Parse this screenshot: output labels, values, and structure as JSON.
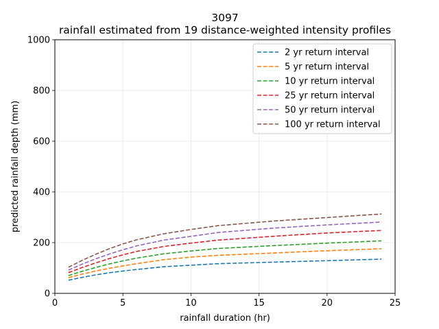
{
  "chart_data": {
    "type": "line",
    "title": "3097",
    "subtitle": "rainfall estimated from 19 distance-weighted intensity profiles",
    "xlabel": "rainfall duration (hr)",
    "ylabel": "predicted rainfall depth (mm)",
    "xlim": [
      0,
      25
    ],
    "ylim": [
      0,
      1000
    ],
    "xticks": [
      "0",
      "5",
      "10",
      "15",
      "20",
      "25"
    ],
    "yticks": [
      "0",
      "200",
      "400",
      "600",
      "800",
      "1000"
    ],
    "grid": true,
    "legend_position": "top-right",
    "line_style": "dashed",
    "x": [
      1,
      2,
      3,
      4,
      5,
      6,
      8,
      10,
      12,
      16,
      20,
      24
    ],
    "series": [
      {
        "name": "2 yr return interval",
        "color": "#1f77b4",
        "values": [
          52,
          63,
          73,
          81,
          88,
          94,
          105,
          111,
          117,
          123,
          129,
          135
        ]
      },
      {
        "name": "5 yr return interval",
        "color": "#ff7f0e",
        "values": [
          62,
          76,
          88,
          99,
          108,
          117,
          133,
          143,
          150,
          159,
          168,
          176
        ]
      },
      {
        "name": "10 yr return interval",
        "color": "#2ca02c",
        "values": [
          70,
          87,
          102,
          116,
          128,
          139,
          156,
          167,
          177,
          188,
          198,
          207
        ]
      },
      {
        "name": "25 yr return interval",
        "color": "#d62728",
        "values": [
          82,
          102,
          120,
          137,
          152,
          165,
          185,
          198,
          210,
          225,
          238,
          248
        ]
      },
      {
        "name": "50 yr return interval",
        "color": "#9467bd",
        "values": [
          92,
          115,
          136,
          155,
          172,
          187,
          210,
          225,
          240,
          257,
          270,
          281
        ]
      },
      {
        "name": "100 yr return interval",
        "color": "#8c564b",
        "values": [
          103,
          130,
          154,
          176,
          195,
          211,
          235,
          252,
          267,
          285,
          299,
          313
        ]
      }
    ]
  }
}
